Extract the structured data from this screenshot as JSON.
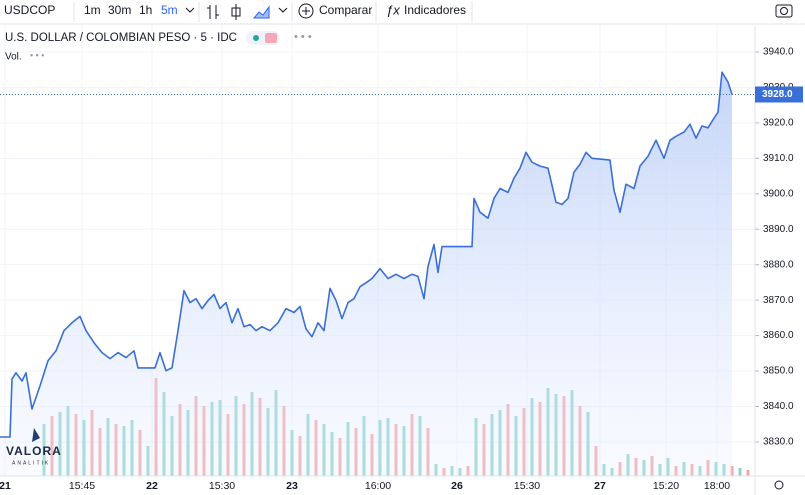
{
  "toolbar": {
    "symbol": "USDCOP",
    "intervals": [
      "1m",
      "30m",
      "1h",
      "5m"
    ],
    "compare": "Comparar",
    "indicators": "Indicadores"
  },
  "legend": {
    "title": "U.S. DOLLAR / COLOMBIAN PESO · 5 · IDC",
    "volume": "Vol."
  },
  "watermark": {
    "brand": "VALORA",
    "sub": "ANALITIK"
  },
  "chart_data": {
    "type": "area",
    "series": [
      {
        "color": "#3a6fd8",
        "x": [
          0,
          10,
          12,
          16,
          22,
          26,
          32,
          40,
          48,
          56,
          64,
          72,
          80,
          86,
          94,
          102,
          110,
          118,
          126,
          134,
          138,
          155,
          160,
          166,
          172,
          178,
          184,
          190,
          196,
          202,
          208,
          214,
          220,
          226,
          232,
          238,
          244,
          250,
          256,
          262,
          270,
          278,
          286,
          294,
          300,
          306,
          312,
          318,
          324,
          330,
          336,
          342,
          348,
          354,
          360,
          366,
          372,
          380,
          388,
          396,
          404,
          412,
          418,
          424,
          428,
          434,
          438,
          442,
          472,
          474,
          480,
          488,
          494,
          500,
          508,
          514,
          520,
          526,
          532,
          540,
          548,
          556,
          562,
          568,
          574,
          580,
          586,
          592,
          610,
          614,
          620,
          626,
          634,
          640,
          648,
          656,
          664,
          670,
          676,
          684,
          690,
          696,
          702,
          708,
          714,
          718,
          722,
          728,
          732
        ],
        "values": [
          3831.4,
          3831.4,
          3847.8,
          3849.5,
          3847.2,
          3849.5,
          3839.3,
          3845.8,
          3852.9,
          3855.7,
          3861.4,
          3863.6,
          3865.4,
          3861.4,
          3858.0,
          3855.2,
          3853.5,
          3855.2,
          3853.8,
          3855.7,
          3850.9,
          3850.9,
          3855.2,
          3850.1,
          3850.9,
          3861.4,
          3872.7,
          3869.3,
          3870.4,
          3867.6,
          3869.9,
          3871.6,
          3867.6,
          3869.3,
          3863.6,
          3867.6,
          3862.5,
          3863.1,
          3861.4,
          3862.5,
          3861.4,
          3863.6,
          3867.6,
          3866.5,
          3868.2,
          3861.9,
          3859.7,
          3863.6,
          3861.4,
          3873.3,
          3869.9,
          3864.8,
          3869.3,
          3870.4,
          3873.8,
          3874.9,
          3876.1,
          3878.9,
          3876.1,
          3877.3,
          3876.1,
          3877.3,
          3876.7,
          3870.4,
          3879.5,
          3885.7,
          3877.8,
          3885.1,
          3885.1,
          3898.7,
          3894.8,
          3893.1,
          3898.7,
          3901.5,
          3900.4,
          3904.4,
          3907.2,
          3911.7,
          3908.9,
          3907.8,
          3907.2,
          3897.6,
          3897.0,
          3898.7,
          3906.1,
          3908.3,
          3911.7,
          3910.0,
          3909.5,
          3901.0,
          3894.8,
          3902.7,
          3901.5,
          3907.8,
          3910.6,
          3915.1,
          3910.0,
          3915.1,
          3916.2,
          3917.4,
          3919.6,
          3915.7,
          3919.1,
          3918.6,
          3921.3,
          3923.0,
          3934.3,
          3931.5,
          3928.0
        ]
      }
    ],
    "last_label": "3928.0",
    "xlim": [
      0,
      755
    ],
    "xticks": [
      {
        "value": 5,
        "label": "21"
      },
      {
        "value": 82,
        "label": "15:45"
      },
      {
        "value": 152,
        "label": "22"
      },
      {
        "value": 222,
        "label": "15:30"
      },
      {
        "value": 292,
        "label": "23"
      },
      {
        "value": 378,
        "label": "16:00"
      },
      {
        "value": 457,
        "label": "26"
      },
      {
        "value": 527,
        "label": "15:30"
      },
      {
        "value": 600,
        "label": "27"
      },
      {
        "value": 666,
        "label": "15:20"
      },
      {
        "value": 717,
        "label": "18:00"
      }
    ],
    "ylim": [
      3820.4,
      3947.6
    ],
    "yticks": [
      {
        "value": 3830,
        "label": "3830.0"
      },
      {
        "value": 3840,
        "label": "3840.0"
      },
      {
        "value": 3850,
        "label": "3850.0"
      },
      {
        "value": 3860,
        "label": "3860.0"
      },
      {
        "value": 3870,
        "label": "3870.0"
      },
      {
        "value": 3880,
        "label": "3880.0"
      },
      {
        "value": 3890,
        "label": "3890.0"
      },
      {
        "value": 3900,
        "label": "3900.0"
      },
      {
        "value": 3910,
        "label": "3910.0"
      },
      {
        "value": 3920,
        "label": "3920.0"
      },
      {
        "value": 3930,
        "label": "3930.0"
      },
      {
        "value": 3940,
        "label": "3940.0"
      }
    ],
    "grid": true,
    "volume": {
      "vlim": [
        0,
        100
      ],
      "x": [
        44,
        52,
        60,
        68,
        76,
        84,
        92,
        100,
        108,
        116,
        124,
        132,
        140,
        148,
        156,
        164,
        172,
        180,
        188,
        196,
        204,
        212,
        220,
        228,
        236,
        244,
        252,
        260,
        268,
        276,
        284,
        292,
        300,
        308,
        316,
        324,
        332,
        340,
        348,
        356,
        364,
        372,
        380,
        388,
        396,
        404,
        412,
        420,
        428,
        436,
        444,
        452,
        460,
        468,
        476,
        484,
        492,
        500,
        508,
        516,
        524,
        532,
        540,
        548,
        556,
        564,
        572,
        580,
        588,
        596,
        604,
        612,
        620,
        628,
        636,
        644,
        652,
        660,
        668,
        676,
        684,
        692,
        700,
        708,
        716,
        724,
        732,
        740,
        748
      ],
      "values": [
        52,
        60,
        64,
        70,
        62,
        56,
        66,
        48,
        58,
        52,
        50,
        56,
        46,
        30,
        98,
        84,
        60,
        72,
        66,
        80,
        70,
        74,
        76,
        62,
        80,
        72,
        84,
        78,
        68,
        86,
        70,
        46,
        40,
        62,
        56,
        52,
        44,
        38,
        54,
        48,
        60,
        42,
        56,
        58,
        52,
        50,
        62,
        60,
        48,
        12,
        8,
        10,
        8,
        10,
        58,
        52,
        62,
        66,
        72,
        60,
        68,
        78,
        74,
        88,
        82,
        80,
        86,
        70,
        64,
        30,
        12,
        8,
        14,
        22,
        18,
        16,
        20,
        12,
        18,
        10,
        14,
        12,
        10,
        16,
        14,
        12,
        10,
        8,
        6
      ],
      "colors": [
        "#8fd3cb",
        "#f2a7a5",
        "#8fd3cb",
        "#8fd3cb",
        "#f2a7a5",
        "#8fd3cb",
        "#f2a7a5",
        "#f2a7a5",
        "#8fd3cb",
        "#f2a7a5",
        "#8fd3cb",
        "#8fd3cb",
        "#f2a7a5",
        "#8fd3cb",
        "#f2a7a5",
        "#8fd3cb",
        "#8fd3cb",
        "#f2a7a5",
        "#8fd3cb",
        "#f2a7a5",
        "#f2a7a5",
        "#8fd3cb",
        "#8fd3cb",
        "#f2a7a5",
        "#8fd3cb",
        "#f2a7a5",
        "#8fd3cb",
        "#f2a7a5",
        "#8fd3cb",
        "#8fd3cb",
        "#f2a7a5",
        "#8fd3cb",
        "#f2a7a5",
        "#8fd3cb",
        "#f2a7a5",
        "#8fd3cb",
        "#8fd3cb",
        "#f2a7a5",
        "#8fd3cb",
        "#f2a7a5",
        "#8fd3cb",
        "#f2a7a5",
        "#8fd3cb",
        "#8fd3cb",
        "#f2a7a5",
        "#8fd3cb",
        "#f2a7a5",
        "#8fd3cb",
        "#f2a7a5",
        "#8fd3cb",
        "#f2a7a5",
        "#8fd3cb",
        "#8fd3cb",
        "#f2a7a5",
        "#8fd3cb",
        "#f2a7a5",
        "#8fd3cb",
        "#8fd3cb",
        "#f2a7a5",
        "#8fd3cb",
        "#f2a7a5",
        "#8fd3cb",
        "#f2a7a5",
        "#8fd3cb",
        "#8fd3cb",
        "#f2a7a5",
        "#8fd3cb",
        "#f2a7a5",
        "#8fd3cb",
        "#f2a7a5",
        "#8fd3cb",
        "#8fd3cb",
        "#f2a7a5",
        "#8fd3cb",
        "#f2a7a5",
        "#8fd3cb",
        "#f2a7a5",
        "#8fd3cb",
        "#8fd3cb",
        "#f2a7a5",
        "#8fd3cb",
        "#f2a7a5",
        "#8fd3cb",
        "#f2a7a5",
        "#8fd3cb",
        "#8fd3cb",
        "#f2a7a5",
        "#8fd3cb",
        "#f2a7a5"
      ]
    }
  }
}
